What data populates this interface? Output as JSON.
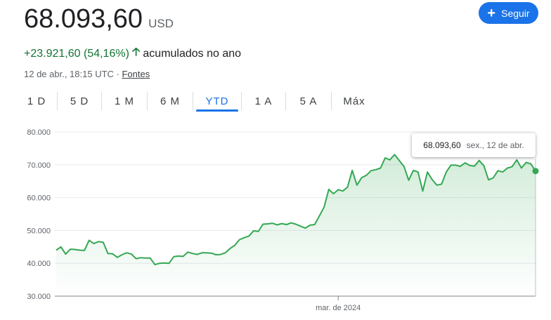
{
  "header": {
    "price": "68.093,60",
    "currency": "USD",
    "change": "+23.921,60 (54,16%)",
    "change_period": "acumulados no ano",
    "timestamp": "12 de abr., 18:15 UTC · ",
    "sources_label": "Fontes",
    "follow_label": "Seguir",
    "colors": {
      "positive": "#137333",
      "accent": "#1a73e8"
    }
  },
  "tabs": [
    {
      "label": "1 D",
      "active": false
    },
    {
      "label": "5 D",
      "active": false
    },
    {
      "label": "1 M",
      "active": false
    },
    {
      "label": "6 M",
      "active": false
    },
    {
      "label": "YTD",
      "active": true
    },
    {
      "label": "1 A",
      "active": false
    },
    {
      "label": "5 A",
      "active": false
    },
    {
      "label": "Máx",
      "active": false
    }
  ],
  "tooltip": {
    "value": "68.093,60",
    "date": "sex., 12 de abr."
  },
  "chart_data": {
    "type": "area",
    "title": "",
    "xlabel": "",
    "ylabel": "",
    "ylim": [
      30000,
      80000
    ],
    "y_ticks": [
      30000,
      40000,
      50000,
      60000,
      70000,
      80000
    ],
    "y_tick_labels": [
      "30.000",
      "40.000",
      "50.000",
      "60.000",
      "70.000",
      "80.000"
    ],
    "x_tick_labels": [
      {
        "label": "mar. de 2024",
        "index": 60
      }
    ],
    "grid": true,
    "line_color": "#34a853",
    "series": [
      {
        "values": [
          44000,
          45000,
          42800,
          44300,
          44200,
          44000,
          43900,
          47000,
          46000,
          46600,
          46400,
          43000,
          42900,
          41800,
          42600,
          43200,
          42800,
          41400,
          41700,
          41600,
          41600,
          39600,
          40000,
          40100,
          40000,
          42000,
          42200,
          42100,
          43400,
          43000,
          42700,
          43200,
          43200,
          43100,
          42600,
          42700,
          43200,
          44500,
          45500,
          47200,
          47800,
          48300,
          49900,
          49700,
          51900,
          52000,
          52200,
          51700,
          52100,
          51800,
          52300,
          51900,
          51300,
          50700,
          51600,
          51800,
          54400,
          57100,
          62500,
          61200,
          62400,
          62000,
          63200,
          68300,
          63800,
          66100,
          66800,
          68200,
          68500,
          69000,
          72100,
          71500,
          73100,
          71300,
          69500,
          65300,
          68300,
          67800,
          62000,
          67800,
          65500,
          63800,
          64100,
          67800,
          69900,
          69900,
          69500,
          70600,
          69800,
          69600,
          71300,
          69700,
          65400,
          66000,
          68200,
          67800,
          69000,
          69400,
          71500,
          69000,
          70700,
          70300,
          68093.6
        ]
      }
    ]
  }
}
